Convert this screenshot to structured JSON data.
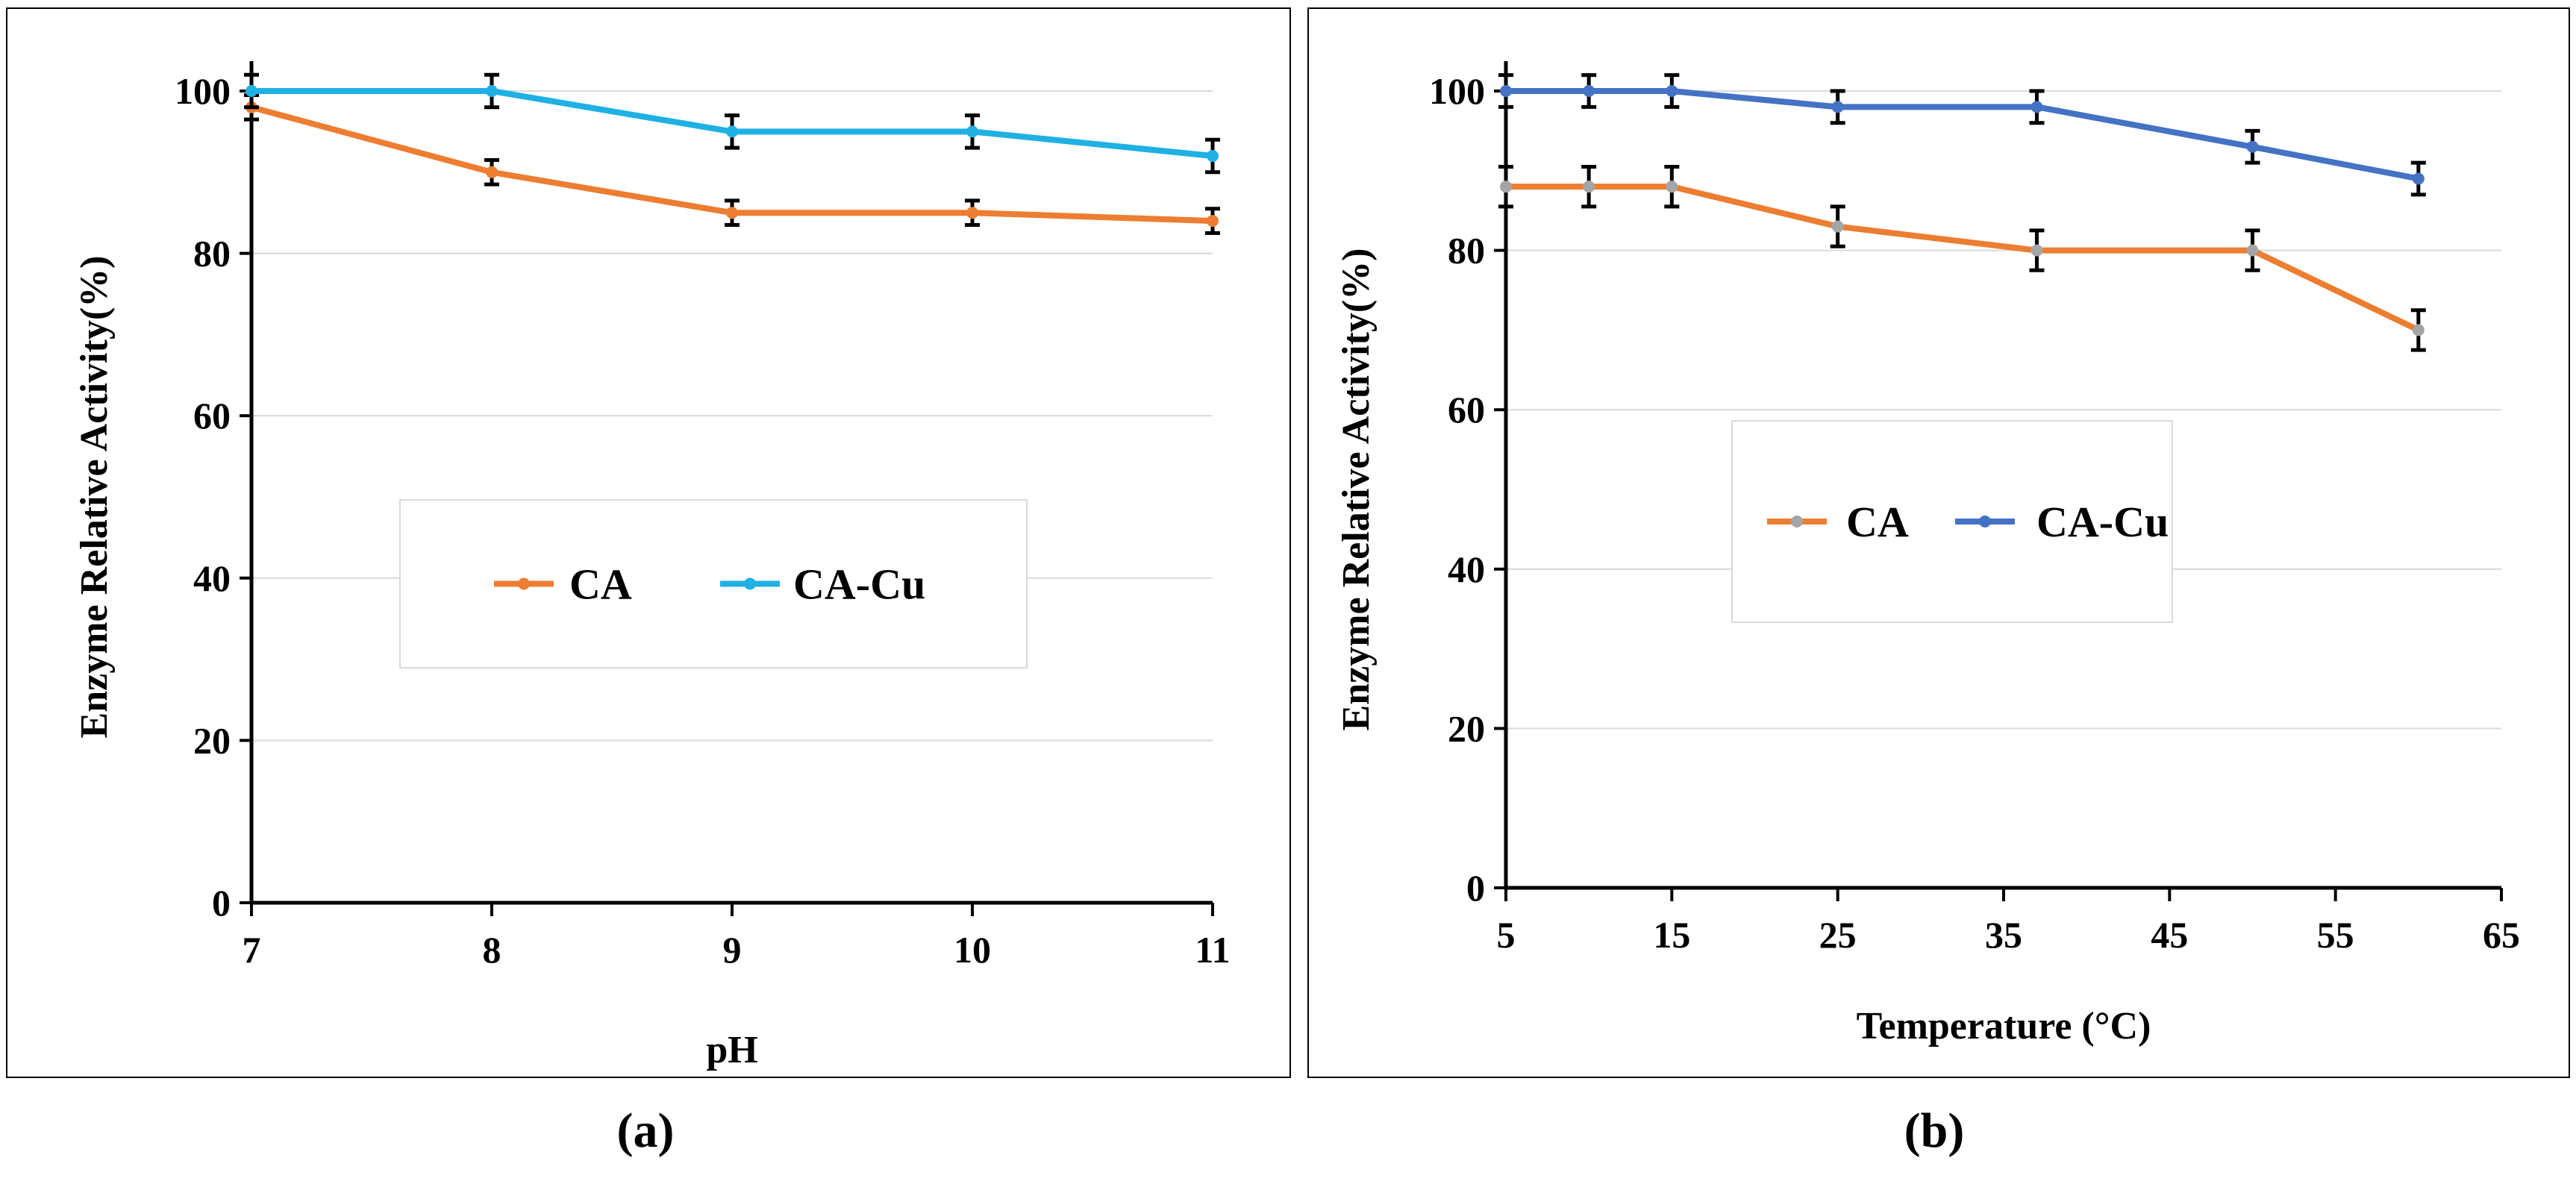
{
  "chart_data": [
    {
      "type": "line",
      "panel_label": "(a)",
      "xlabel": "pH",
      "ylabel": "Enzyme  Relative Activity(%)",
      "xlim": [
        7,
        11
      ],
      "ylim": [
        0,
        100
      ],
      "xticks": [
        7,
        8,
        9,
        10,
        11
      ],
      "yticks": [
        0,
        20,
        40,
        60,
        80,
        100
      ],
      "grid": true,
      "legend": "center-boxed",
      "series": [
        {
          "name": "CA",
          "color": "#ED7D31",
          "marker_color": "#ED7D31",
          "x": [
            7,
            8,
            9,
            10,
            11
          ],
          "values": [
            98,
            90,
            85,
            85,
            84
          ],
          "error": [
            1.5,
            1.5,
            1.5,
            1.5,
            1.5
          ]
        },
        {
          "name": "CA-Cu",
          "color": "#1FB0E4",
          "marker_color": "#1FB0E4",
          "x": [
            7,
            8,
            9,
            10,
            11
          ],
          "values": [
            100,
            100,
            95,
            95,
            92
          ],
          "error": [
            2,
            2,
            2,
            2,
            2
          ]
        }
      ]
    },
    {
      "type": "line",
      "panel_label": "(b)",
      "xlabel": "Temperature (°C)",
      "ylabel": "Enzyme  Relative Activity(%)",
      "xlim": [
        5,
        65
      ],
      "ylim": [
        0,
        100
      ],
      "xticks": [
        5,
        15,
        25,
        35,
        45,
        55,
        65
      ],
      "yticks": [
        0,
        20,
        40,
        60,
        80,
        100
      ],
      "grid": true,
      "legend": "center-boxed",
      "series": [
        {
          "name": "CA",
          "color": "#ED7D31",
          "marker_color": "#A5A5A5",
          "x": [
            5,
            10,
            15,
            25,
            37,
            50,
            60
          ],
          "values": [
            88,
            88,
            88,
            83,
            80,
            80,
            70
          ],
          "error": [
            2.5,
            2.5,
            2.5,
            2.5,
            2.5,
            2.5,
            2.5
          ]
        },
        {
          "name": "CA-Cu",
          "color": "#4472C4",
          "marker_color": "#4472C4",
          "x": [
            5,
            10,
            15,
            25,
            37,
            50,
            60
          ],
          "values": [
            100,
            100,
            100,
            98,
            98,
            93,
            89
          ],
          "error": [
            2,
            2,
            2,
            2,
            2,
            2,
            2
          ]
        }
      ]
    }
  ]
}
